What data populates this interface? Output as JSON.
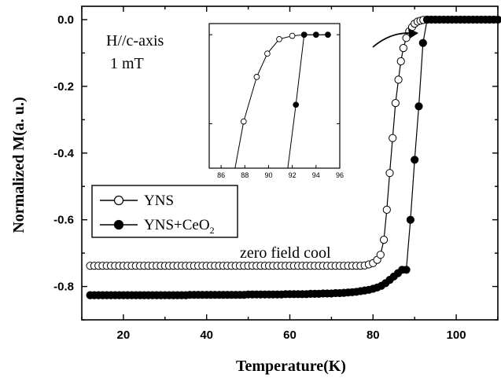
{
  "chart_data": {
    "type": "scatter",
    "xlabel": "Temperature(K)",
    "ylabel": "Normalized M(a. u.)",
    "xlim": [
      10,
      110
    ],
    "ylim": [
      -0.9,
      0.04
    ],
    "xticks": [
      "20",
      "40",
      "60",
      "80",
      "100"
    ],
    "yticks": [
      "0.0",
      "-0.2",
      "-0.4",
      "-0.6",
      "-0.8"
    ],
    "annotations": {
      "field_direction": "H//c-axis",
      "field_value": "1 mT",
      "protocol": "zero field cool"
    },
    "series": [
      {
        "name": "YNS",
        "marker": "open-circle",
        "x": [
          12,
          13,
          14,
          15,
          16,
          17,
          18,
          19,
          20,
          21,
          22,
          23,
          24,
          25,
          26,
          27,
          28,
          29,
          30,
          31,
          32,
          33,
          34,
          35,
          36,
          37,
          38,
          39,
          40,
          41,
          42,
          43,
          44,
          45,
          46,
          47,
          48,
          49,
          50,
          51,
          52,
          53,
          54,
          55,
          56,
          57,
          58,
          59,
          60,
          61,
          62,
          63,
          64,
          65,
          66,
          67,
          68,
          69,
          70,
          71,
          72,
          73,
          74,
          75,
          76,
          77,
          78,
          79,
          80,
          81,
          81.8,
          82.6,
          83.3,
          84,
          84.7,
          85.4,
          86.1,
          86.7,
          87.3,
          88,
          88.7,
          89.4,
          90,
          90.7,
          91.4,
          92.1,
          93
        ],
        "y": [
          -0.738,
          -0.738,
          -0.738,
          -0.738,
          -0.738,
          -0.738,
          -0.738,
          -0.738,
          -0.738,
          -0.738,
          -0.738,
          -0.738,
          -0.738,
          -0.738,
          -0.738,
          -0.738,
          -0.738,
          -0.738,
          -0.738,
          -0.738,
          -0.738,
          -0.738,
          -0.738,
          -0.738,
          -0.738,
          -0.738,
          -0.738,
          -0.738,
          -0.738,
          -0.738,
          -0.738,
          -0.738,
          -0.738,
          -0.738,
          -0.738,
          -0.738,
          -0.738,
          -0.738,
          -0.738,
          -0.738,
          -0.738,
          -0.738,
          -0.738,
          -0.738,
          -0.738,
          -0.738,
          -0.738,
          -0.738,
          -0.738,
          -0.738,
          -0.738,
          -0.738,
          -0.738,
          -0.738,
          -0.738,
          -0.738,
          -0.738,
          -0.738,
          -0.738,
          -0.738,
          -0.738,
          -0.738,
          -0.738,
          -0.738,
          -0.738,
          -0.738,
          -0.737,
          -0.734,
          -0.73,
          -0.72,
          -0.705,
          -0.66,
          -0.57,
          -0.46,
          -0.355,
          -0.25,
          -0.18,
          -0.125,
          -0.085,
          -0.055,
          -0.035,
          -0.022,
          -0.012,
          -0.006,
          -0.003,
          -0.001,
          0.0
        ]
      },
      {
        "name": "YNS+CeO2",
        "marker": "filled-circle",
        "x": [
          12,
          13,
          14,
          15,
          16,
          17,
          18,
          19,
          20,
          21,
          22,
          23,
          24,
          25,
          26,
          27,
          28,
          29,
          30,
          31,
          32,
          33,
          34,
          35,
          36,
          37,
          38,
          39,
          40,
          41,
          42,
          43,
          44,
          45,
          46,
          47,
          48,
          49,
          50,
          51,
          52,
          53,
          54,
          55,
          56,
          57,
          58,
          59,
          60,
          61,
          62,
          63,
          64,
          65,
          66,
          67,
          68,
          69,
          70,
          71,
          72,
          73,
          74,
          75,
          76,
          77,
          78,
          79,
          80,
          81,
          82,
          83,
          84,
          85,
          86,
          87,
          88,
          89,
          90,
          91,
          92,
          93,
          94,
          95,
          96,
          97,
          98,
          99,
          100,
          101,
          102,
          103,
          104,
          105,
          106,
          107,
          108,
          109,
          110
        ],
        "y": [
          -0.826,
          -0.826,
          -0.826,
          -0.826,
          -0.826,
          -0.826,
          -0.826,
          -0.826,
          -0.826,
          -0.826,
          -0.826,
          -0.826,
          -0.826,
          -0.826,
          -0.826,
          -0.826,
          -0.826,
          -0.826,
          -0.826,
          -0.826,
          -0.826,
          -0.826,
          -0.826,
          -0.826,
          -0.825,
          -0.825,
          -0.825,
          -0.825,
          -0.825,
          -0.825,
          -0.825,
          -0.825,
          -0.825,
          -0.825,
          -0.825,
          -0.825,
          -0.825,
          -0.825,
          -0.824,
          -0.824,
          -0.824,
          -0.824,
          -0.824,
          -0.824,
          -0.824,
          -0.824,
          -0.824,
          -0.823,
          -0.823,
          -0.823,
          -0.823,
          -0.823,
          -0.823,
          -0.822,
          -0.822,
          -0.822,
          -0.821,
          -0.821,
          -0.821,
          -0.82,
          -0.82,
          -0.819,
          -0.818,
          -0.817,
          -0.816,
          -0.814,
          -0.812,
          -0.81,
          -0.807,
          -0.803,
          -0.798,
          -0.79,
          -0.78,
          -0.77,
          -0.76,
          -0.75,
          -0.75,
          -0.6,
          -0.42,
          -0.26,
          -0.07,
          0.0,
          0.0,
          0.0,
          0.0,
          0.0,
          0.0,
          0.0,
          0.0,
          0.0,
          0.0,
          0.0,
          0.0,
          0.0,
          0.0,
          0.0,
          0.0,
          0.0,
          0.0
        ]
      }
    ],
    "legend": {
      "placement": "middle-left",
      "entries": [
        {
          "label": "YNS",
          "marker": "open-circle"
        },
        {
          "label": "YNS+CeO",
          "subscript": "2",
          "marker": "filled-circle"
        }
      ]
    },
    "inset": {
      "xlim": [
        85,
        96
      ],
      "ylim": [
        -0.12,
        0.01
      ],
      "xticks": [
        "86",
        "88",
        "90",
        "92",
        "94",
        "96"
      ],
      "series": [
        {
          "name": "YNS",
          "marker": "open-circle",
          "x": [
            87.0,
            87.9,
            89.0,
            89.9,
            90.9,
            92.0,
            93.0,
            94.0,
            95.0
          ],
          "y": [
            -0.13,
            -0.078,
            -0.038,
            -0.017,
            -0.004,
            -0.001,
            0.0,
            0.0,
            0.0
          ]
        },
        {
          "name": "YNS+CeO2",
          "marker": "filled-circle",
          "x": [
            91.5,
            92.3,
            93.0,
            94.0,
            95.0
          ],
          "y": [
            -0.13,
            -0.063,
            0.0,
            0.0,
            0.0
          ]
        }
      ]
    }
  }
}
